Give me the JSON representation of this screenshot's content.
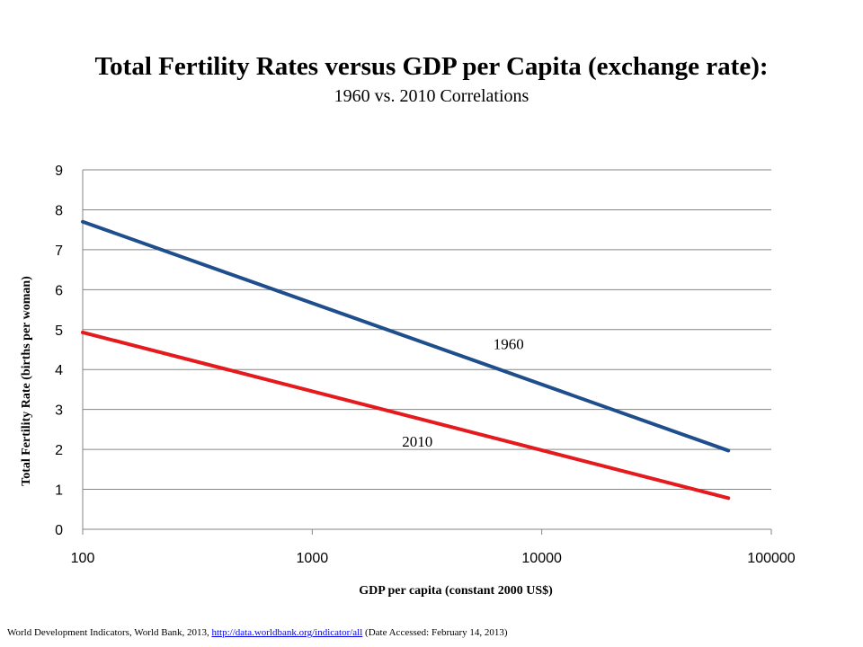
{
  "title": "Total Fertility Rates versus GDP per Capita (exchange rate):",
  "subtitle": "1960 vs. 2010 Correlations",
  "source": {
    "prefix": "World Development Indicators, World Bank, 2013, ",
    "link": "http://data.worldbank.org/indicator/all",
    "suffix": " (Date Accessed: February 14, 2013)"
  },
  "chart_data": {
    "type": "line",
    "xlabel": "GDP per capita (constant 2000 US$)",
    "ylabel": "Total Fertility Rate (births per woman)",
    "xscale": "log",
    "xlim": [
      100,
      100000
    ],
    "ylim": [
      0,
      9
    ],
    "xticks": [
      "100",
      "1000",
      "10000",
      "100000"
    ],
    "yticks": [
      "0",
      "1",
      "2",
      "3",
      "4",
      "5",
      "6",
      "7",
      "8",
      "9"
    ],
    "grid": "horizontal",
    "series": [
      {
        "name": "1960",
        "color": "#1f4e8c",
        "x": [
          100,
          65000
        ],
        "y": [
          7.7,
          1.97
        ]
      },
      {
        "name": "2010",
        "color": "#e41a1c",
        "x": [
          100,
          65000
        ],
        "y": [
          4.93,
          0.78
        ]
      }
    ]
  }
}
